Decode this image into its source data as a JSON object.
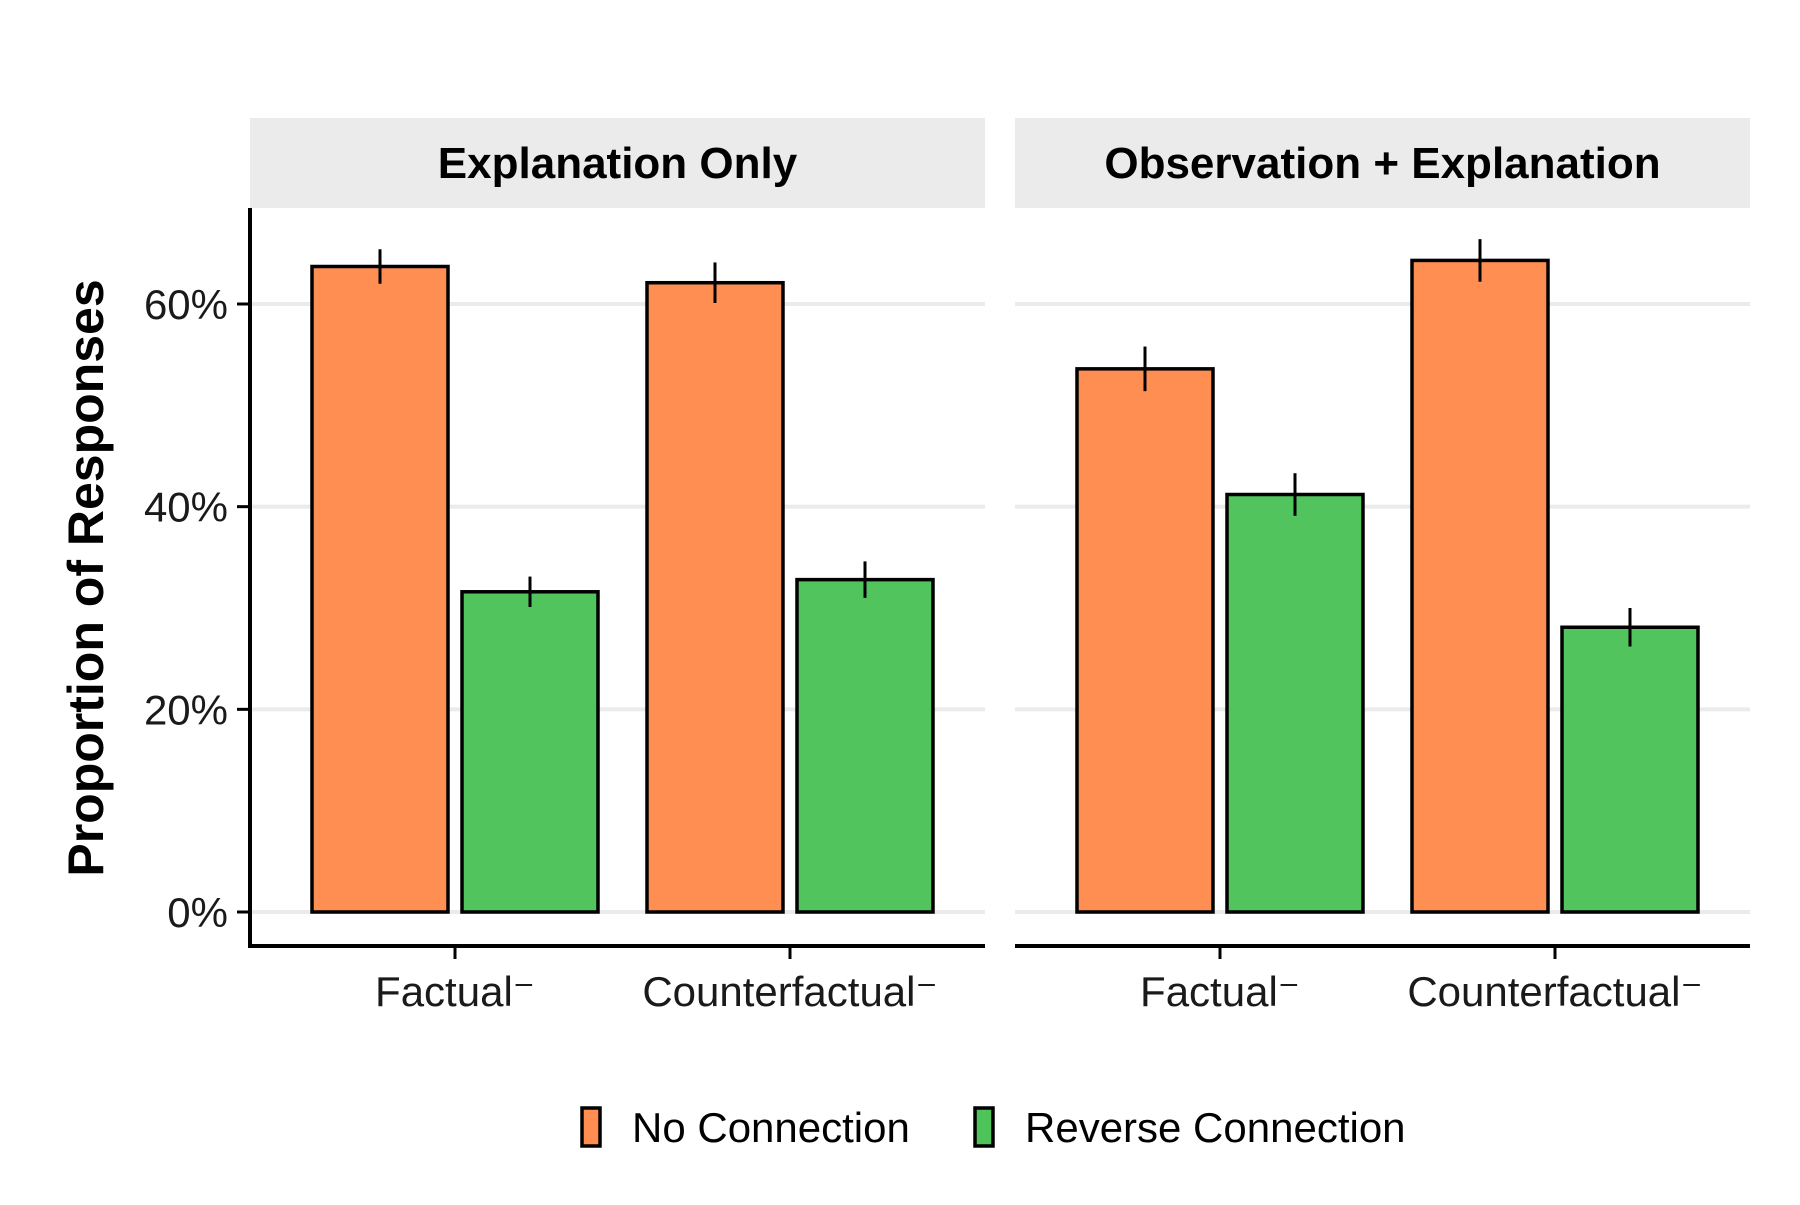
{
  "chart_data": {
    "type": "bar",
    "ylabel": "Proportion of Responses",
    "xlabel": "",
    "ylim": [
      0,
      0.7
    ],
    "y_ticks": [
      {
        "value": 0,
        "label": "0%"
      },
      {
        "value": 0.2,
        "label": "20%"
      },
      {
        "value": 0.4,
        "label": "40%"
      },
      {
        "value": 0.6,
        "label": "60%"
      }
    ],
    "grid": "horizontal",
    "categories": [
      "Factual⁻",
      "Counterfactual⁻"
    ],
    "legend": {
      "position": "bottom",
      "entries": [
        {
          "name": "No Connection",
          "color": "#FF8C50"
        },
        {
          "name": "Reverse Connection",
          "color": "#4EC35A"
        }
      ]
    },
    "panels": [
      {
        "title": "Explanation Only",
        "series": [
          {
            "name": "No Connection",
            "values": [
              0.637,
              0.621
            ],
            "error": [
              0.017,
              0.02
            ]
          },
          {
            "name": "Reverse Connection",
            "values": [
              0.316,
              0.328
            ],
            "error": [
              0.015,
              0.018
            ]
          }
        ]
      },
      {
        "title": "Observation + Explanation",
        "series": [
          {
            "name": "No Connection",
            "values": [
              0.536,
              0.643
            ],
            "error": [
              0.022,
              0.021
            ]
          },
          {
            "name": "Reverse Connection",
            "values": [
              0.412,
              0.281
            ],
            "error": [
              0.021,
              0.019
            ]
          }
        ]
      }
    ]
  }
}
